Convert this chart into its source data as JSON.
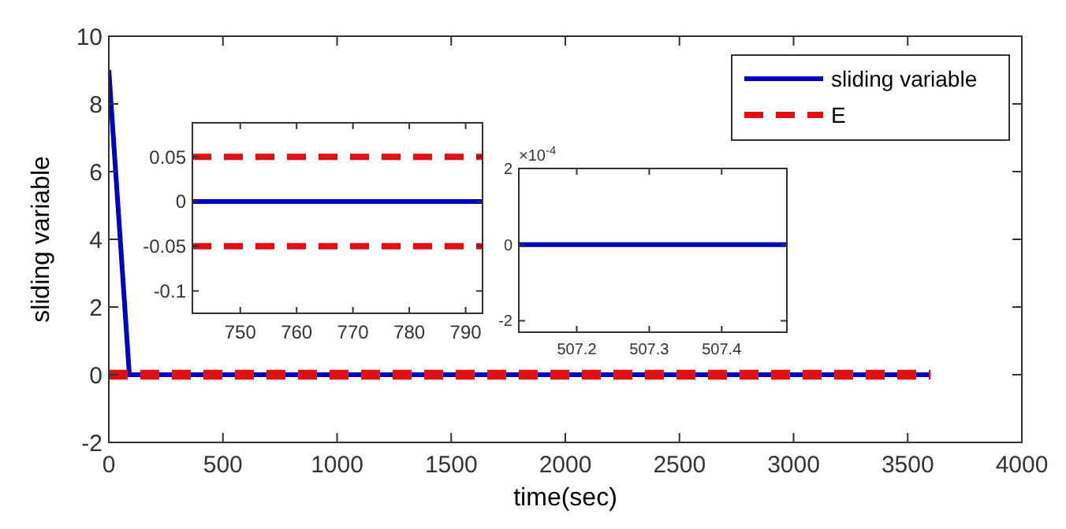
{
  "chart_data": [
    {
      "type": "line",
      "xlabel": "time(sec)",
      "ylabel": "sliding variable",
      "xlim": [
        0,
        4000
      ],
      "xticks": [
        0,
        500,
        1000,
        1500,
        2000,
        2500,
        3000,
        3500,
        4000
      ],
      "ylim": [
        -2,
        10
      ],
      "yticks": [
        -2,
        0,
        2,
        4,
        6,
        8,
        10
      ],
      "legend": "top right",
      "series": [
        {
          "name": "sliding variable",
          "color": "#0000c0",
          "x": [
            0,
            90,
            3600
          ],
          "values": [
            9,
            0,
            0
          ],
          "line_style": "solid"
        },
        {
          "name": "E",
          "color": "#e01010",
          "x": [
            0,
            3600
          ],
          "values": [
            0.05,
            0.05
          ],
          "line_style": "dashed"
        },
        {
          "color": "#e01010",
          "x": [
            0,
            3600
          ],
          "values": [
            -0.05,
            -0.05
          ],
          "line_style": "dashed"
        }
      ]
    },
    {
      "type": "line",
      "xlim": [
        741.5,
        793
      ],
      "xticks": [
        750,
        760,
        770,
        780,
        790
      ],
      "ylim": [
        -0.125,
        0.088
      ],
      "yticks": [
        -0.1,
        -0.05,
        0,
        0.05
      ],
      "series": [
        {
          "color": "#0000c0",
          "x": [
            741.5,
            793
          ],
          "values": [
            0,
            0
          ],
          "line_style": "solid"
        },
        {
          "color": "#e01010",
          "x": [
            741.5,
            793
          ],
          "values": [
            0.05,
            0.05
          ],
          "line_style": "dashed"
        },
        {
          "color": "#e01010",
          "x": [
            741.5,
            793
          ],
          "values": [
            -0.05,
            -0.05
          ],
          "line_style": "dashed"
        }
      ]
    },
    {
      "type": "line",
      "xlim": [
        507.12,
        507.49
      ],
      "xticks": [
        507.2,
        507.3,
        507.4
      ],
      "ylim": [
        -2.3,
        2
      ],
      "yticks": [
        -2,
        0,
        2
      ],
      "annotations": [
        "×10$^{-4}$"
      ],
      "series": [
        {
          "color": "#0000c0",
          "x": [
            507.12,
            507.49
          ],
          "values": [
            0,
            0
          ],
          "line_style": "solid"
        }
      ]
    }
  ]
}
